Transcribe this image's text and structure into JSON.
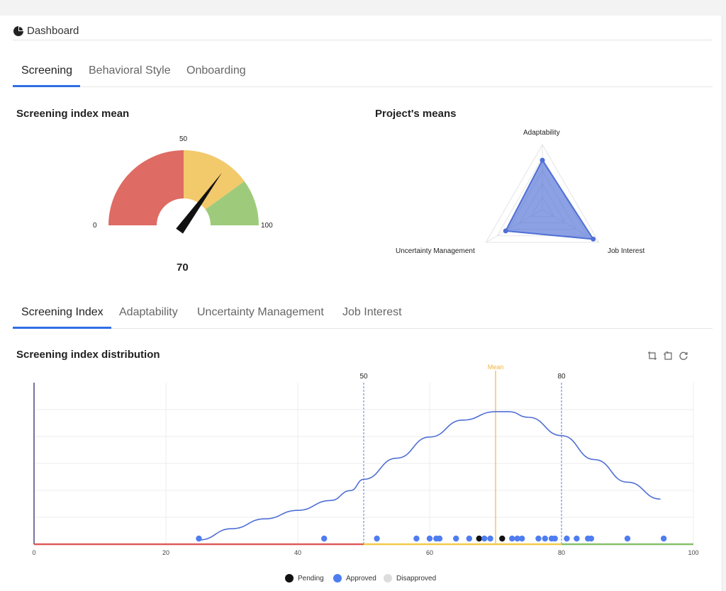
{
  "header": {
    "title": "Dashboard",
    "icon": "pie-chart-icon"
  },
  "main_tabs": [
    {
      "label": "Screening",
      "active": true
    },
    {
      "label": "Behavioral Style",
      "active": false
    },
    {
      "label": "Onboarding",
      "active": false
    }
  ],
  "gauge": {
    "title": "Screening index mean",
    "value": 70,
    "value_label": "70",
    "min_label": "0",
    "mid_label": "50",
    "max_label": "100",
    "bands": [
      {
        "from": 0,
        "to": 50,
        "color": "#de6b64"
      },
      {
        "from": 50,
        "to": 80,
        "color": "#f2c96b"
      },
      {
        "from": 80,
        "to": 100,
        "color": "#9dcb7b"
      }
    ]
  },
  "radar": {
    "title": "Project's means",
    "axes": [
      "Adaptability",
      "Job Interest",
      "Uncertainty Management"
    ],
    "values": [
      0.76,
      0.9,
      0.65
    ],
    "color": "#4f6fd6"
  },
  "sub_tabs": [
    {
      "label": "Screening Index",
      "active": true
    },
    {
      "label": "Adaptability",
      "active": false
    },
    {
      "label": "Uncertainty Management",
      "active": false
    },
    {
      "label": "Job Interest",
      "active": false
    }
  ],
  "chart_data": {
    "type": "line",
    "title": "Screening index distribution",
    "xlim": [
      0,
      100
    ],
    "x_ticks": [
      "0",
      "20",
      "40",
      "60",
      "80",
      "100"
    ],
    "curve": {
      "x": [
        25,
        30,
        35,
        40,
        45,
        48,
        50,
        55,
        60,
        65,
        70,
        72,
        75,
        80,
        85,
        90,
        95
      ],
      "y": [
        0,
        0.08,
        0.15,
        0.21,
        0.28,
        0.35,
        0.43,
        0.58,
        0.73,
        0.85,
        0.91,
        0.91,
        0.87,
        0.74,
        0.57,
        0.41,
        0.29
      ]
    },
    "markers": [
      {
        "x": 50,
        "label": "50",
        "color": "#5b7fd6"
      },
      {
        "x": 70,
        "label": "Mean",
        "color": "#f2b33d"
      },
      {
        "x": 80,
        "label": "80",
        "color": "#5b7fd6"
      }
    ],
    "baseline_bands": [
      {
        "from": 0,
        "to": 50,
        "color": "#de5a5a"
      },
      {
        "from": 50,
        "to": 80,
        "color": "#f2c94c"
      },
      {
        "from": 80,
        "to": 100,
        "color": "#86c06a"
      }
    ],
    "points": [
      {
        "x": 25,
        "status": "Approved"
      },
      {
        "x": 44,
        "status": "Approved"
      },
      {
        "x": 52,
        "status": "Approved"
      },
      {
        "x": 58,
        "status": "Approved"
      },
      {
        "x": 60,
        "status": "Approved"
      },
      {
        "x": 61,
        "status": "Approved"
      },
      {
        "x": 61.5,
        "status": "Approved"
      },
      {
        "x": 64,
        "status": "Approved"
      },
      {
        "x": 66,
        "status": "Approved"
      },
      {
        "x": 67.5,
        "status": "Pending"
      },
      {
        "x": 68.3,
        "status": "Approved"
      },
      {
        "x": 69.2,
        "status": "Approved"
      },
      {
        "x": 71,
        "status": "Pending"
      },
      {
        "x": 72.5,
        "status": "Approved"
      },
      {
        "x": 73.3,
        "status": "Approved"
      },
      {
        "x": 74,
        "status": "Approved"
      },
      {
        "x": 76.5,
        "status": "Approved"
      },
      {
        "x": 77.5,
        "status": "Approved"
      },
      {
        "x": 78.5,
        "status": "Approved"
      },
      {
        "x": 79,
        "status": "Approved"
      },
      {
        "x": 80.8,
        "status": "Approved"
      },
      {
        "x": 82.3,
        "status": "Approved"
      },
      {
        "x": 84,
        "status": "Approved"
      },
      {
        "x": 84.5,
        "status": "Approved"
      },
      {
        "x": 90,
        "status": "Approved"
      },
      {
        "x": 95.5,
        "status": "Approved"
      }
    ],
    "legend": [
      {
        "name": "Pending",
        "color": "#111111"
      },
      {
        "name": "Approved",
        "color": "#4f7df0"
      },
      {
        "name": "Disapproved",
        "color": "#dddddd"
      }
    ]
  },
  "toolbar": {
    "icons": [
      "crop-icon",
      "undo-crop-icon",
      "refresh-icon"
    ]
  }
}
